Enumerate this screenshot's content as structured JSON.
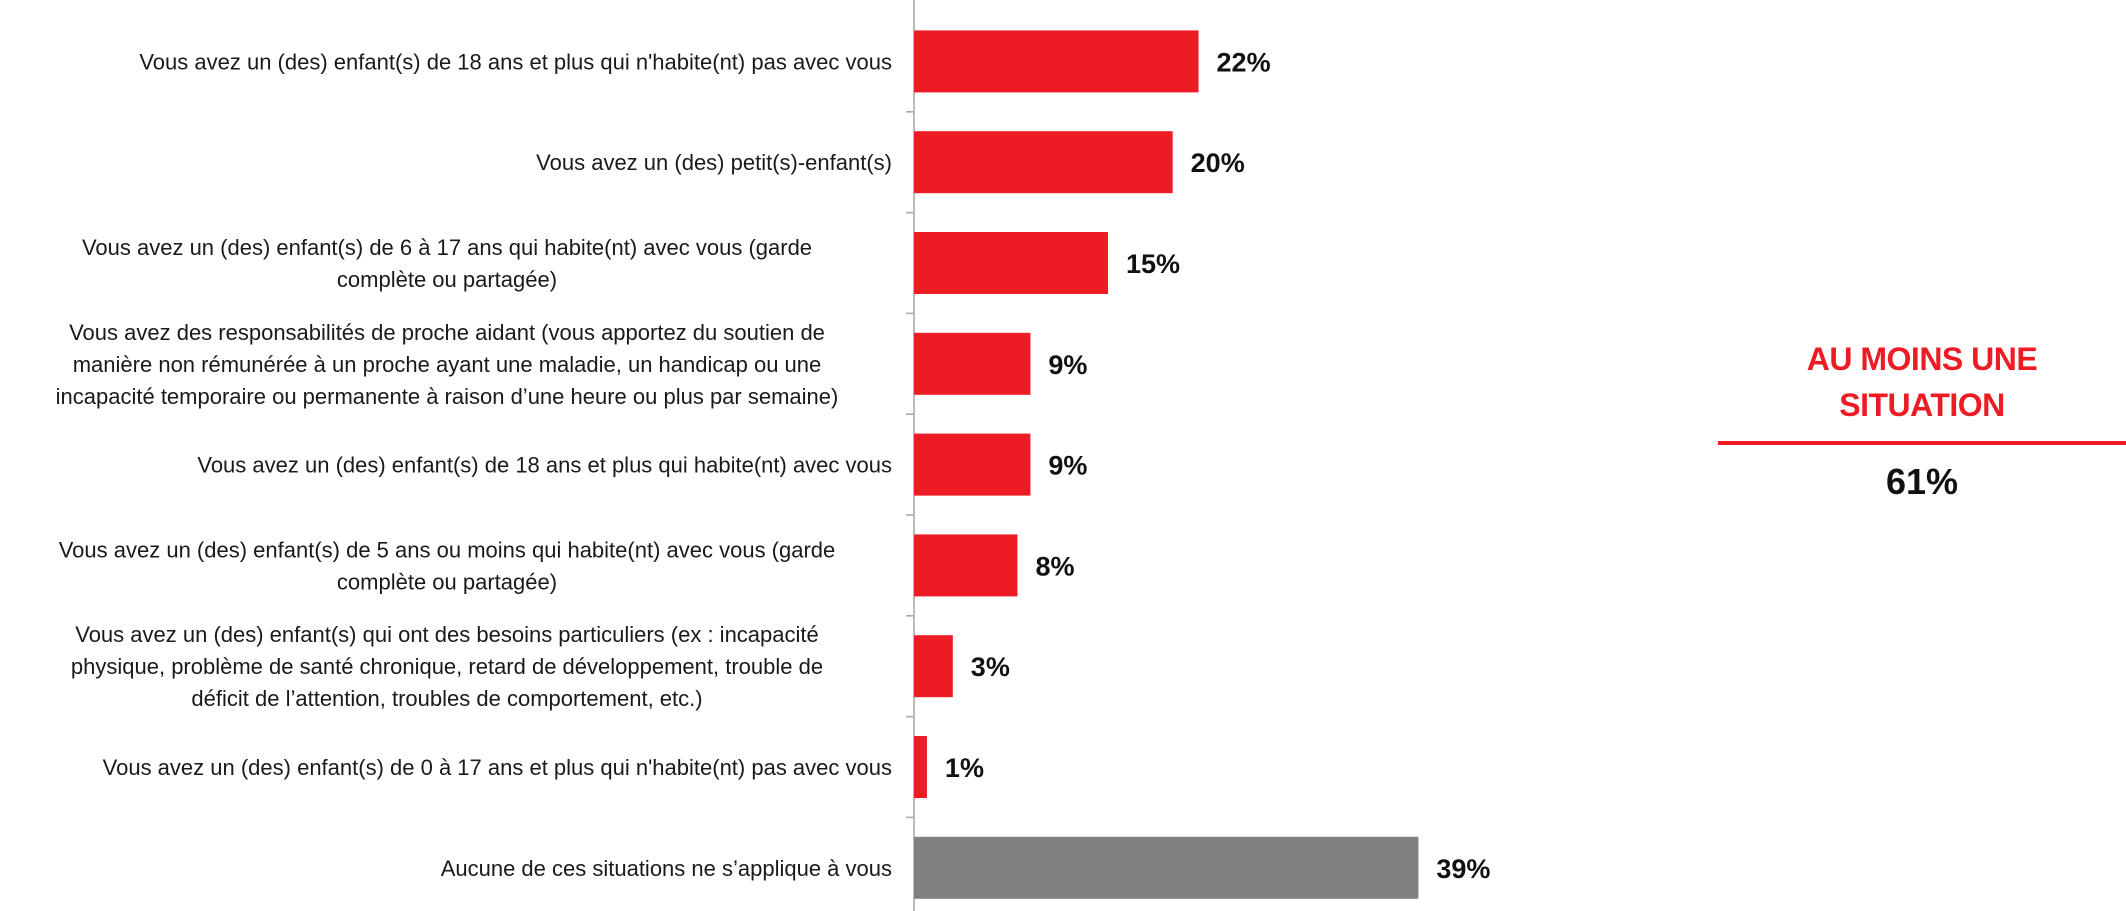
{
  "chart_data": {
    "type": "bar",
    "orientation": "horizontal",
    "categories": [
      [
        "Vous avez un (des) enfant(s) de 18 ans et plus qui n'habite(nt) pas avec vous"
      ],
      [
        "Vous avez un (des) petit(s)-enfant(s)"
      ],
      [
        "Vous avez un (des) enfant(s) de 6 à 17 ans qui habite(nt) avec vous (garde",
        "complète ou partagée)"
      ],
      [
        "Vous avez des responsabilités de proche aidant (vous apportez du soutien de",
        "manière non rémunérée  à un proche ayant une maladie, un handicap ou une",
        "incapacité temporaire ou  permanente  à raison d’une heure ou plus par semaine)"
      ],
      [
        "Vous avez un (des) enfant(s) de 18 ans et plus qui habite(nt) avec vous"
      ],
      [
        "Vous avez un (des) enfant(s) de 5 ans ou moins qui habite(nt) avec vous (garde",
        "complète ou partagée)"
      ],
      [
        "Vous avez un (des) enfant(s) qui ont des besoins particuliers (ex : incapacité",
        "physique, problème de santé chronique, retard de développement,  trouble de",
        "déficit de l’attention, troubles de comportement,  etc.)"
      ],
      [
        "Vous avez un (des) enfant(s) de 0 à 17 ans et plus qui n'habite(nt) pas avec vous"
      ],
      [
        "Aucune de ces situations ne s’applique à vous"
      ]
    ],
    "values": [
      22,
      20,
      15,
      9,
      9,
      8,
      3,
      1,
      39
    ],
    "value_labels": [
      "22%",
      "20%",
      "15%",
      "9%",
      "9%",
      "8%",
      "3%",
      "1%",
      "39%"
    ],
    "colors": [
      "#ed1c24",
      "#ed1c24",
      "#ed1c24",
      "#ed1c24",
      "#ed1c24",
      "#ed1c24",
      "#ed1c24",
      "#ed1c24",
      "#808080"
    ],
    "xlim": [
      0,
      40
    ],
    "grid": false,
    "axis_color": "#a6a6a6"
  },
  "summary": {
    "title": "AU MOINS UNE SITUATION",
    "value": "61%",
    "accent_color": "#ed1c24"
  }
}
